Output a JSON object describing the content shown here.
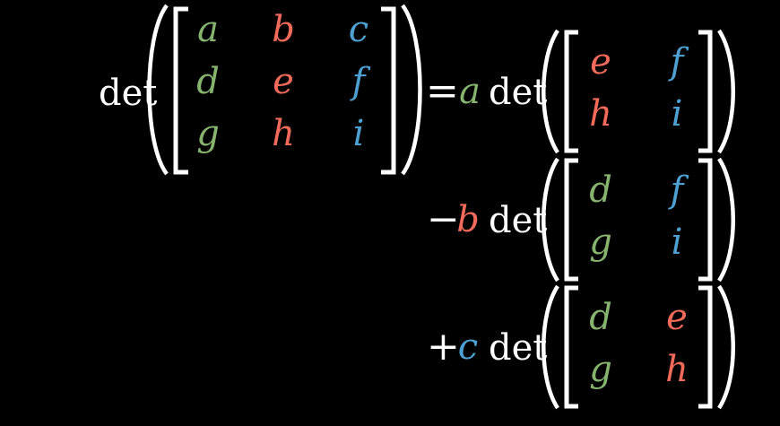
{
  "colors": {
    "background": "#000000",
    "text": "#ffffff",
    "green": "#86b46f",
    "red": "#f26a59",
    "blue": "#4ea0d2"
  },
  "lhs": {
    "det": "det",
    "matrix": [
      [
        {
          "v": "a",
          "c": "green"
        },
        {
          "v": "b",
          "c": "red"
        },
        {
          "v": "c",
          "c": "blue"
        }
      ],
      [
        {
          "v": "d",
          "c": "green"
        },
        {
          "v": "e",
          "c": "red"
        },
        {
          "v": "f",
          "c": "blue"
        }
      ],
      [
        {
          "v": "g",
          "c": "green"
        },
        {
          "v": "h",
          "c": "red"
        },
        {
          "v": "i",
          "c": "blue"
        }
      ]
    ]
  },
  "equals": "=",
  "terms": [
    {
      "sign": "",
      "coef": "a",
      "coef_color": "green",
      "det": "det",
      "matrix": [
        [
          {
            "v": "e",
            "c": "red"
          },
          {
            "v": "f",
            "c": "blue"
          }
        ],
        [
          {
            "v": "h",
            "c": "red"
          },
          {
            "v": "i",
            "c": "blue"
          }
        ]
      ]
    },
    {
      "sign": "−",
      "coef": "b",
      "coef_color": "red",
      "det": "det",
      "matrix": [
        [
          {
            "v": "d",
            "c": "green"
          },
          {
            "v": "f",
            "c": "blue"
          }
        ],
        [
          {
            "v": "g",
            "c": "green"
          },
          {
            "v": "i",
            "c": "blue"
          }
        ]
      ]
    },
    {
      "sign": "+",
      "coef": "c",
      "coef_color": "blue",
      "det": "det",
      "matrix": [
        [
          {
            "v": "d",
            "c": "green"
          },
          {
            "v": "e",
            "c": "red"
          }
        ],
        [
          {
            "v": "g",
            "c": "green"
          },
          {
            "v": "h",
            "c": "red"
          }
        ]
      ]
    }
  ]
}
